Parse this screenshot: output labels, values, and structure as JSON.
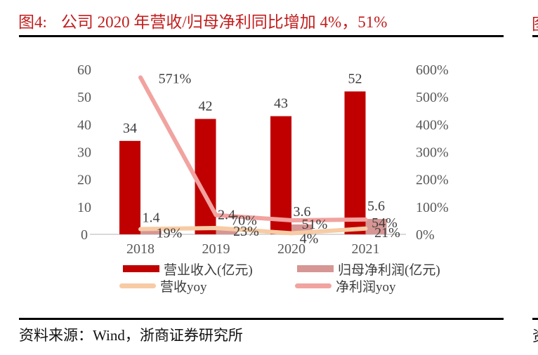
{
  "header": {
    "figure_label": "图4:",
    "title": "公司 2020 年营收/归母净利同比增加 4%，51%"
  },
  "footer": {
    "source": "资料来源：Wind，浙商证券研究所"
  },
  "adjacent_column_fragments": {
    "top_fragment": "图",
    "bottom_fragment": "资"
  },
  "colors": {
    "title_red": "#C21D1D",
    "revenue_bar": "#C00000",
    "net_profit_bar": "#D69694",
    "revenue_yoy_line": "#F7CBA4",
    "net_profit_yoy_line": "#F1A3A0",
    "axis_text": "#595959",
    "data_label": "#3D3D3D",
    "axis_line": "#D9D9D9",
    "rule": "#000000"
  },
  "chart_data": {
    "type": "bar+line",
    "categories": [
      "2018",
      "2019",
      "2020",
      "2021"
    ],
    "series": [
      {
        "name": "营业收入(亿元)",
        "type": "bar",
        "axis": "left",
        "color": "#C00000",
        "values": [
          34,
          42,
          43,
          52
        ],
        "labels": [
          "34",
          "42",
          "43",
          "52"
        ]
      },
      {
        "name": "归母净利润(亿元)",
        "type": "bar",
        "axis": "left",
        "color": "#D69694",
        "values": [
          1.4,
          2.4,
          3.6,
          5.6
        ],
        "labels": [
          "1.4",
          "2.4",
          "3.6",
          "5.6"
        ]
      },
      {
        "name": "营收yoy",
        "type": "line",
        "axis": "right",
        "color": "#F7CBA4",
        "values": [
          19,
          23,
          4,
          21
        ],
        "labels": [
          "19%",
          "23%",
          "4%",
          "21%"
        ]
      },
      {
        "name": "净利润yoy",
        "type": "line",
        "axis": "right",
        "color": "#F1A3A0",
        "values": [
          571,
          70,
          51,
          54
        ],
        "labels": [
          "571%",
          "70%",
          "51%",
          "54%"
        ]
      }
    ],
    "left_axis": {
      "min": 0,
      "max": 60,
      "tick_labels": [
        "0",
        "10",
        "20",
        "30",
        "40",
        "50",
        "60"
      ]
    },
    "right_axis": {
      "min": 0,
      "max": 600,
      "tick_labels": [
        "0%",
        "100%",
        "200%",
        "300%",
        "400%",
        "500%",
        "600%"
      ]
    },
    "grid": false,
    "legend_position": "bottom"
  }
}
